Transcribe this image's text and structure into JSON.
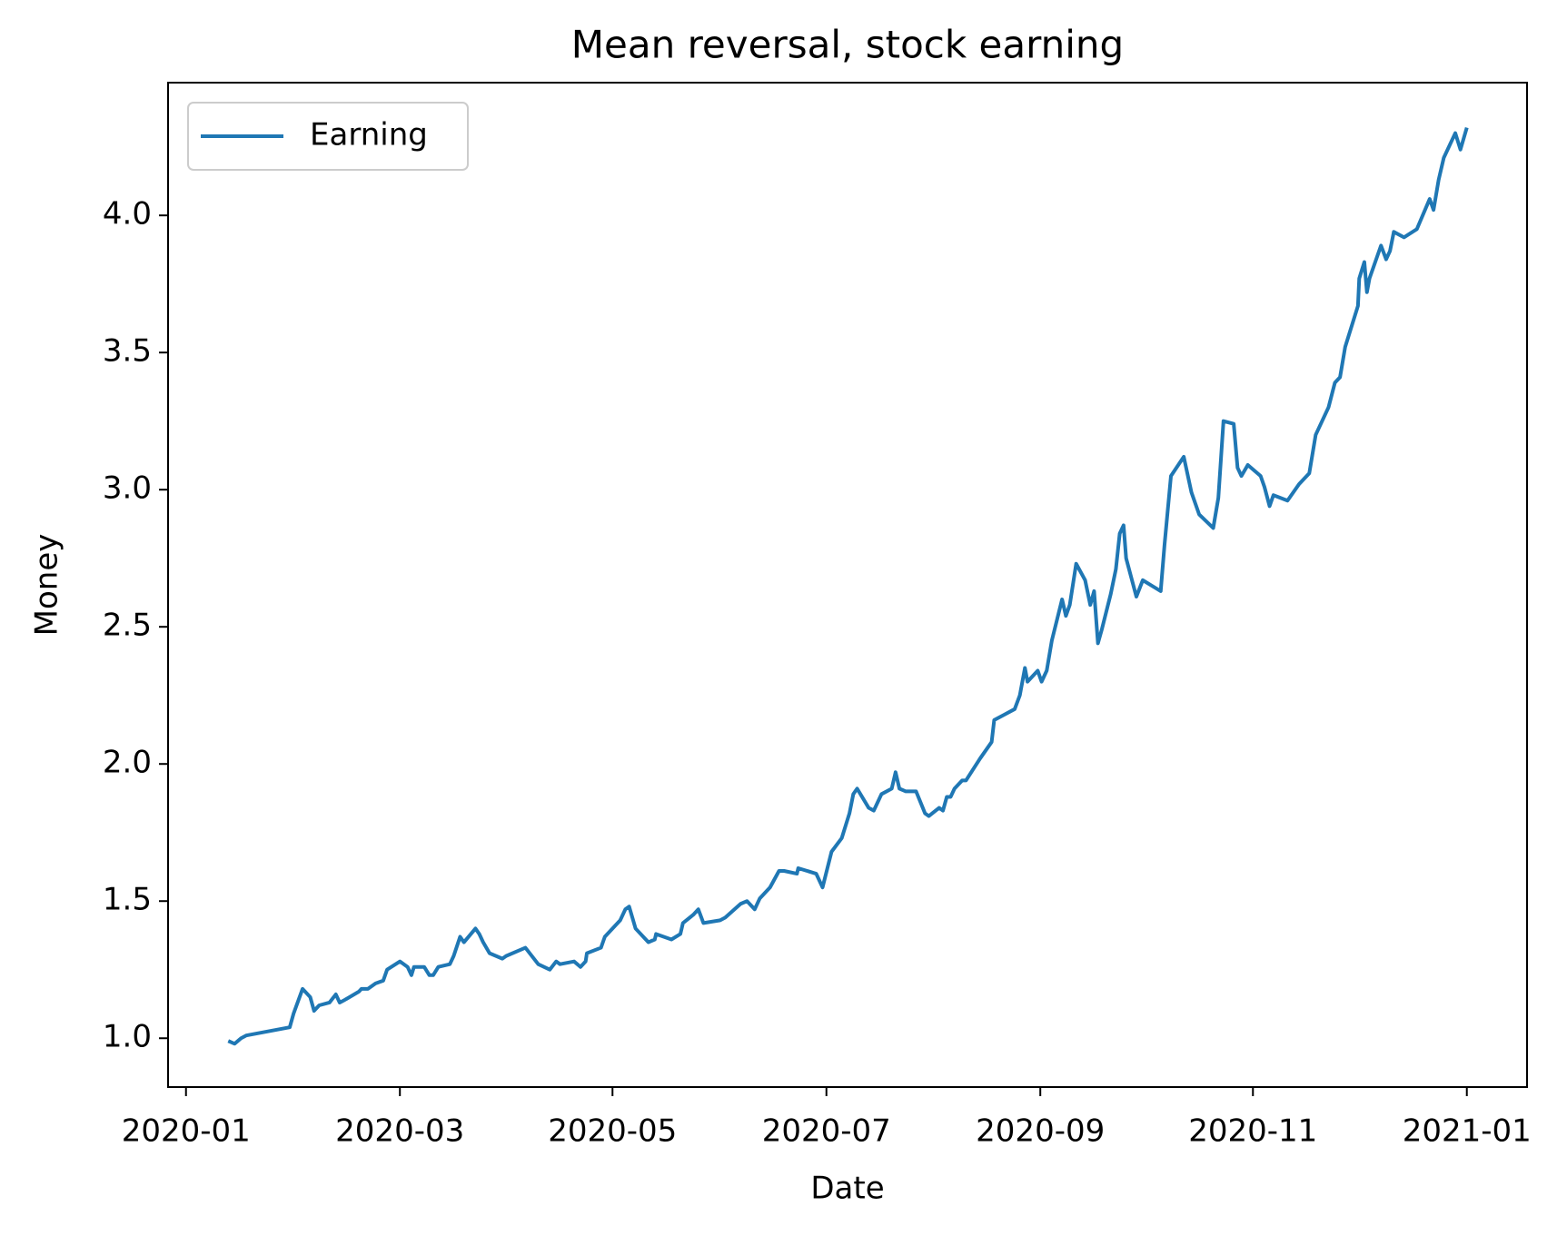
{
  "chart_data": {
    "type": "line",
    "title": "Mean reversal, stock earning",
    "xlabel": "Date",
    "ylabel": "Money",
    "legend": "upper left",
    "grid": false,
    "xlim": [
      2019.986,
      2021.047
    ],
    "ylim": [
      0.822,
      4.484
    ],
    "xticks": [
      {
        "value": 2020,
        "label": "2020-01"
      },
      {
        "value": 2020.167,
        "label": "2020-03"
      },
      {
        "value": 2020.333,
        "label": "2020-05"
      },
      {
        "value": 2020.5,
        "label": "2020-07"
      },
      {
        "value": 2020.667,
        "label": "2020-09"
      },
      {
        "value": 2020.833,
        "label": "2020-11"
      },
      {
        "value": 2021,
        "label": "2021-01"
      }
    ],
    "yticks": [
      {
        "value": 1,
        "label": "1.0"
      },
      1.5,
      {
        "value": 2,
        "label": "2.0"
      },
      2.5,
      {
        "value": 3,
        "label": "3.0"
      },
      3.5,
      {
        "value": 4,
        "label": "4.0"
      }
    ],
    "x": [
      2020.033,
      2020.038,
      2020.043,
      2020.047,
      2020.081,
      2020.084,
      2020.091,
      2020.097,
      2020.1,
      2020.104,
      2020.112,
      2020.117,
      2020.12,
      2020.124,
      2020.135,
      2020.137,
      2020.142,
      2020.148,
      2020.154,
      2020.157,
      2020.167,
      2020.173,
      2020.176,
      2020.178,
      2020.186,
      2020.19,
      2020.193,
      2020.197,
      2020.206,
      2020.209,
      2020.214,
      2020.217,
      2020.226,
      2020.229,
      2020.232,
      2020.237,
      2020.247,
      2020.25,
      2020.265,
      2020.275,
      2020.284,
      2020.289,
      2020.292,
      2020.303,
      2020.308,
      2020.312,
      2020.313,
      2020.324,
      2020.327,
      2020.339,
      2020.343,
      2020.346,
      2020.351,
      2020.361,
      2020.366,
      2020.367,
      2020.379,
      2020.386,
      2020.388,
      2020.396,
      2020.4,
      2020.404,
      2020.417,
      2020.421,
      2020.433,
      2020.438,
      2020.444,
      2020.448,
      2020.456,
      2020.463,
      2020.467,
      2020.477,
      2020.478,
      2020.492,
      2020.497,
      2020.504,
      2020.512,
      2020.518,
      2020.521,
      2020.524,
      2020.533,
      2020.537,
      2020.54,
      2020.543,
      2020.551,
      2020.554,
      2020.557,
      2020.562,
      2020.57,
      2020.577,
      2020.58,
      2020.588,
      2020.591,
      2020.594,
      2020.597,
      2020.6,
      2020.606,
      2020.609,
      2020.62,
      2020.629,
      2020.631,
      2020.635,
      2020.639,
      2020.647,
      2020.651,
      2020.655,
      2020.657,
      2020.665,
      2020.668,
      2020.672,
      2020.676,
      2020.684,
      2020.687,
      2020.69,
      2020.695,
      2020.702,
      2020.706,
      2020.709,
      2020.712,
      2020.715,
      2020.722,
      2020.726,
      2020.729,
      2020.732,
      2020.734,
      2020.742,
      2020.747,
      2020.761,
      2020.764,
      2020.769,
      2020.779,
      2020.785,
      2020.791,
      2020.802,
      2020.806,
      2020.81,
      2020.818,
      2020.821,
      2020.824,
      2020.829,
      2020.839,
      2020.842,
      2020.846,
      2020.849,
      2020.86,
      2020.869,
      2020.877,
      2020.882,
      2020.892,
      2020.897,
      2020.901,
      2020.905,
      2020.915,
      2020.916,
      2020.92,
      2020.922,
      2020.924,
      2020.933,
      2020.937,
      2020.94,
      2020.943,
      2020.951,
      2020.961,
      2020.971,
      2020.974,
      2020.978,
      2020.982,
      2020.991,
      2020.995,
      2021
    ],
    "series": [
      {
        "name": "Earning",
        "color": "#1f77b4",
        "values": [
          0.99,
          0.98,
          1.0,
          1.01,
          1.04,
          1.09,
          1.18,
          1.15,
          1.1,
          1.12,
          1.13,
          1.16,
          1.13,
          1.14,
          1.17,
          1.18,
          1.18,
          1.2,
          1.21,
          1.25,
          1.28,
          1.26,
          1.23,
          1.26,
          1.26,
          1.23,
          1.23,
          1.26,
          1.27,
          1.3,
          1.37,
          1.35,
          1.4,
          1.38,
          1.35,
          1.31,
          1.29,
          1.3,
          1.33,
          1.27,
          1.25,
          1.28,
          1.27,
          1.28,
          1.26,
          1.28,
          1.31,
          1.33,
          1.37,
          1.43,
          1.47,
          1.48,
          1.4,
          1.35,
          1.36,
          1.38,
          1.36,
          1.38,
          1.42,
          1.45,
          1.47,
          1.42,
          1.43,
          1.44,
          1.49,
          1.5,
          1.47,
          1.51,
          1.55,
          1.61,
          1.61,
          1.6,
          1.62,
          1.6,
          1.55,
          1.68,
          1.73,
          1.82,
          1.89,
          1.91,
          1.84,
          1.83,
          1.86,
          1.89,
          1.91,
          1.97,
          1.91,
          1.9,
          1.9,
          1.82,
          1.81,
          1.84,
          1.83,
          1.88,
          1.88,
          1.91,
          1.94,
          1.94,
          2.02,
          2.08,
          2.16,
          2.17,
          2.18,
          2.2,
          2.25,
          2.35,
          2.3,
          2.34,
          2.3,
          2.34,
          2.45,
          2.6,
          2.54,
          2.58,
          2.73,
          2.67,
          2.58,
          2.63,
          2.44,
          2.49,
          2.62,
          2.71,
          2.84,
          2.87,
          2.75,
          2.61,
          2.67,
          2.63,
          2.8,
          3.05,
          3.12,
          2.99,
          2.91,
          2.86,
          2.97,
          3.25,
          3.24,
          3.08,
          3.05,
          3.09,
          3.05,
          3.01,
          2.94,
          2.98,
          2.96,
          3.02,
          3.06,
          3.2,
          3.3,
          3.39,
          3.41,
          3.52,
          3.67,
          3.77,
          3.83,
          3.72,
          3.77,
          3.89,
          3.84,
          3.87,
          3.94,
          3.92,
          3.95,
          4.06,
          4.02,
          4.13,
          4.21,
          4.3,
          4.24,
          4.32
        ]
      }
    ]
  }
}
